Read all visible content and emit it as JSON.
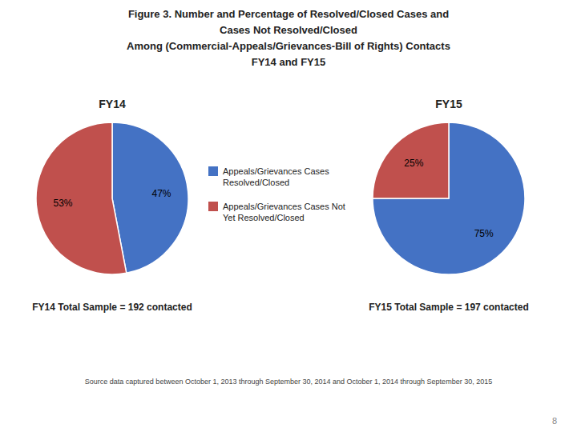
{
  "title": "Figure 3. Number and Percentage of Resolved/Closed Cases and\nCases Not Resolved/Closed\nAmong (Commercial-Appeals/Grievances-Bill of Rights) Contacts\nFY14 and FY15",
  "annotations": [
    "Source data captured between October 1, 2013 through September 30, 2014 and October 1, 2014 through September 30, 2015",
    "8"
  ],
  "chart_data": [
    {
      "type": "pie",
      "title": "FY14",
      "categories": [
        "Appeals/Grievances Cases\nResolved/Closed",
        "Appeals/Grievances Cases Not\nYet Resolved/Closed"
      ],
      "values": [
        47,
        53
      ],
      "value_labels": [
        "47%",
        "53%"
      ],
      "colors": [
        "#4472C4",
        "#C0504D"
      ],
      "data_labels": true,
      "legend": "center",
      "annotations": [
        "FY14 Total Sample = 192 contacted"
      ]
    },
    {
      "type": "pie",
      "title": "FY15",
      "categories": [
        "Appeals/Grievances Cases\nResolved/Closed",
        "Appeals/Grievances Cases Not\nYet Resolved/Closed"
      ],
      "values": [
        75,
        25
      ],
      "value_labels": [
        "75%",
        "25%"
      ],
      "colors": [
        "#4472C4",
        "#C0504D"
      ],
      "data_labels": true,
      "annotations": [
        "FY15 Total Sample = 197 contacted"
      ]
    }
  ]
}
